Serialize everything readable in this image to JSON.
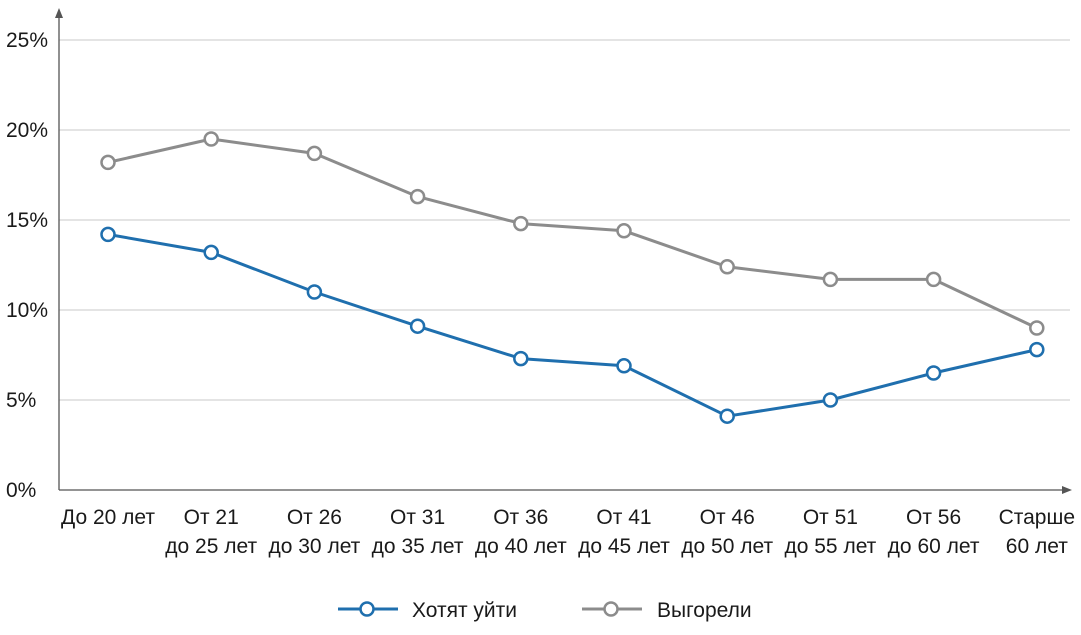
{
  "chart_data": {
    "type": "line",
    "categories": [
      [
        "До 20 лет"
      ],
      [
        "От 21",
        "до 25 лет"
      ],
      [
        "От 26",
        "до 30 лет"
      ],
      [
        "От 31",
        "до 35 лет"
      ],
      [
        "От 36",
        "до 40 лет"
      ],
      [
        "От 41",
        "до 45 лет"
      ],
      [
        "От 46",
        "до 50 лет"
      ],
      [
        "От 51",
        "до 55 лет"
      ],
      [
        "От 56",
        "до 60 лет"
      ],
      [
        "Старше",
        "60 лет"
      ]
    ],
    "series": [
      {
        "name": "Хотят уйти",
        "color": "#1f6fae",
        "values": [
          14.2,
          13.2,
          11.0,
          9.1,
          7.3,
          6.9,
          4.1,
          5.0,
          6.5,
          7.8
        ]
      },
      {
        "name": "Выгорели",
        "color": "#8c8c8c",
        "values": [
          18.2,
          19.5,
          18.7,
          16.3,
          14.8,
          14.4,
          12.4,
          11.7,
          11.7,
          9.0
        ]
      }
    ],
    "ylim": [
      0,
      25
    ],
    "y_ticks": [
      0,
      5,
      10,
      15,
      20,
      25
    ],
    "y_tick_labels": [
      "0%",
      "5%",
      "10%",
      "15%",
      "20%",
      "25%"
    ],
    "grid": true,
    "legend_position": "bottom-center",
    "title": "",
    "xlabel": "",
    "ylabel": ""
  }
}
